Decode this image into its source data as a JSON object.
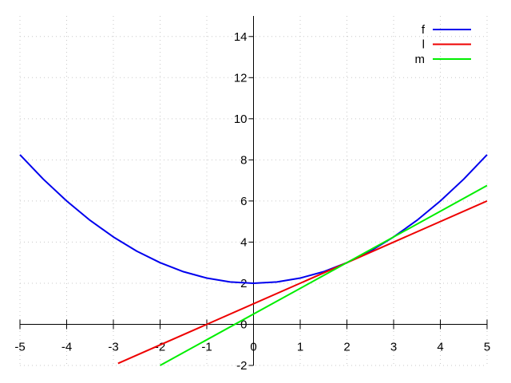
{
  "chart_data": {
    "type": "line",
    "title": "",
    "xlabel": "",
    "ylabel": "",
    "xlim": [
      -5,
      5
    ],
    "ylim": [
      -2,
      15
    ],
    "grid": true,
    "legend_position": "top-right",
    "x_ticks": [
      -5,
      -4,
      -3,
      -2,
      -1,
      0,
      1,
      2,
      3,
      4,
      5
    ],
    "y_ticks": [
      -2,
      0,
      2,
      4,
      6,
      8,
      10,
      12,
      14
    ],
    "series": [
      {
        "name": "f",
        "color": "#0000ee",
        "x": [
          -5,
          -4.5,
          -4,
          -3.5,
          -3,
          -2.5,
          -2,
          -1.5,
          -1,
          -0.5,
          0,
          0.5,
          1,
          1.5,
          2,
          2.5,
          3,
          3.5,
          4,
          4.5,
          5
        ],
        "y": [
          8.25,
          7.06,
          6,
          5.06,
          4.25,
          3.56,
          3,
          2.56,
          2.25,
          2.06,
          2,
          2.06,
          2.25,
          2.56,
          3,
          3.56,
          4.25,
          5.06,
          6,
          7.06,
          8.25
        ]
      },
      {
        "name": "l",
        "color": "#ee0000",
        "x": [
          -2.9,
          5
        ],
        "y": [
          -1.9,
          6
        ]
      },
      {
        "name": "m",
        "color": "#00ee00",
        "x": [
          -2,
          5
        ],
        "y": [
          -2,
          6.75
        ]
      }
    ]
  }
}
